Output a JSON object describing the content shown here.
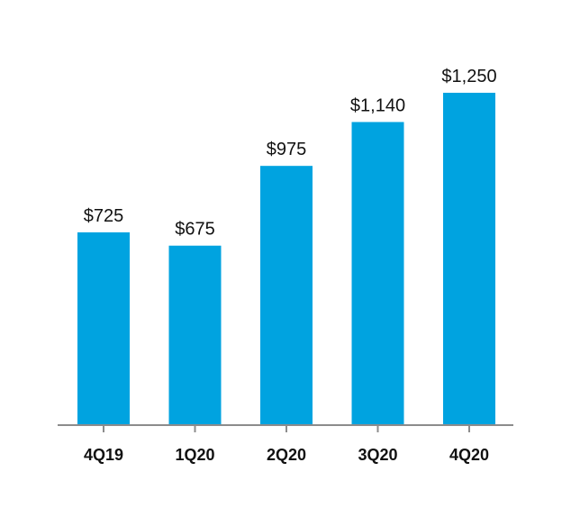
{
  "chart_data": {
    "type": "bar",
    "categories": [
      "4Q19",
      "1Q20",
      "2Q20",
      "3Q20",
      "4Q20"
    ],
    "values": [
      725,
      675,
      975,
      1140,
      1250
    ],
    "value_labels": [
      "$725",
      "$675",
      "$975",
      "$1,140",
      "$1,250"
    ],
    "title": "",
    "xlabel": "",
    "ylabel": "",
    "ylim": [
      0,
      1250
    ],
    "grid": false,
    "legend": "none",
    "colors": {
      "bar": "#00A3E0",
      "axis": "#8C8C8C",
      "text": "#111111"
    }
  }
}
